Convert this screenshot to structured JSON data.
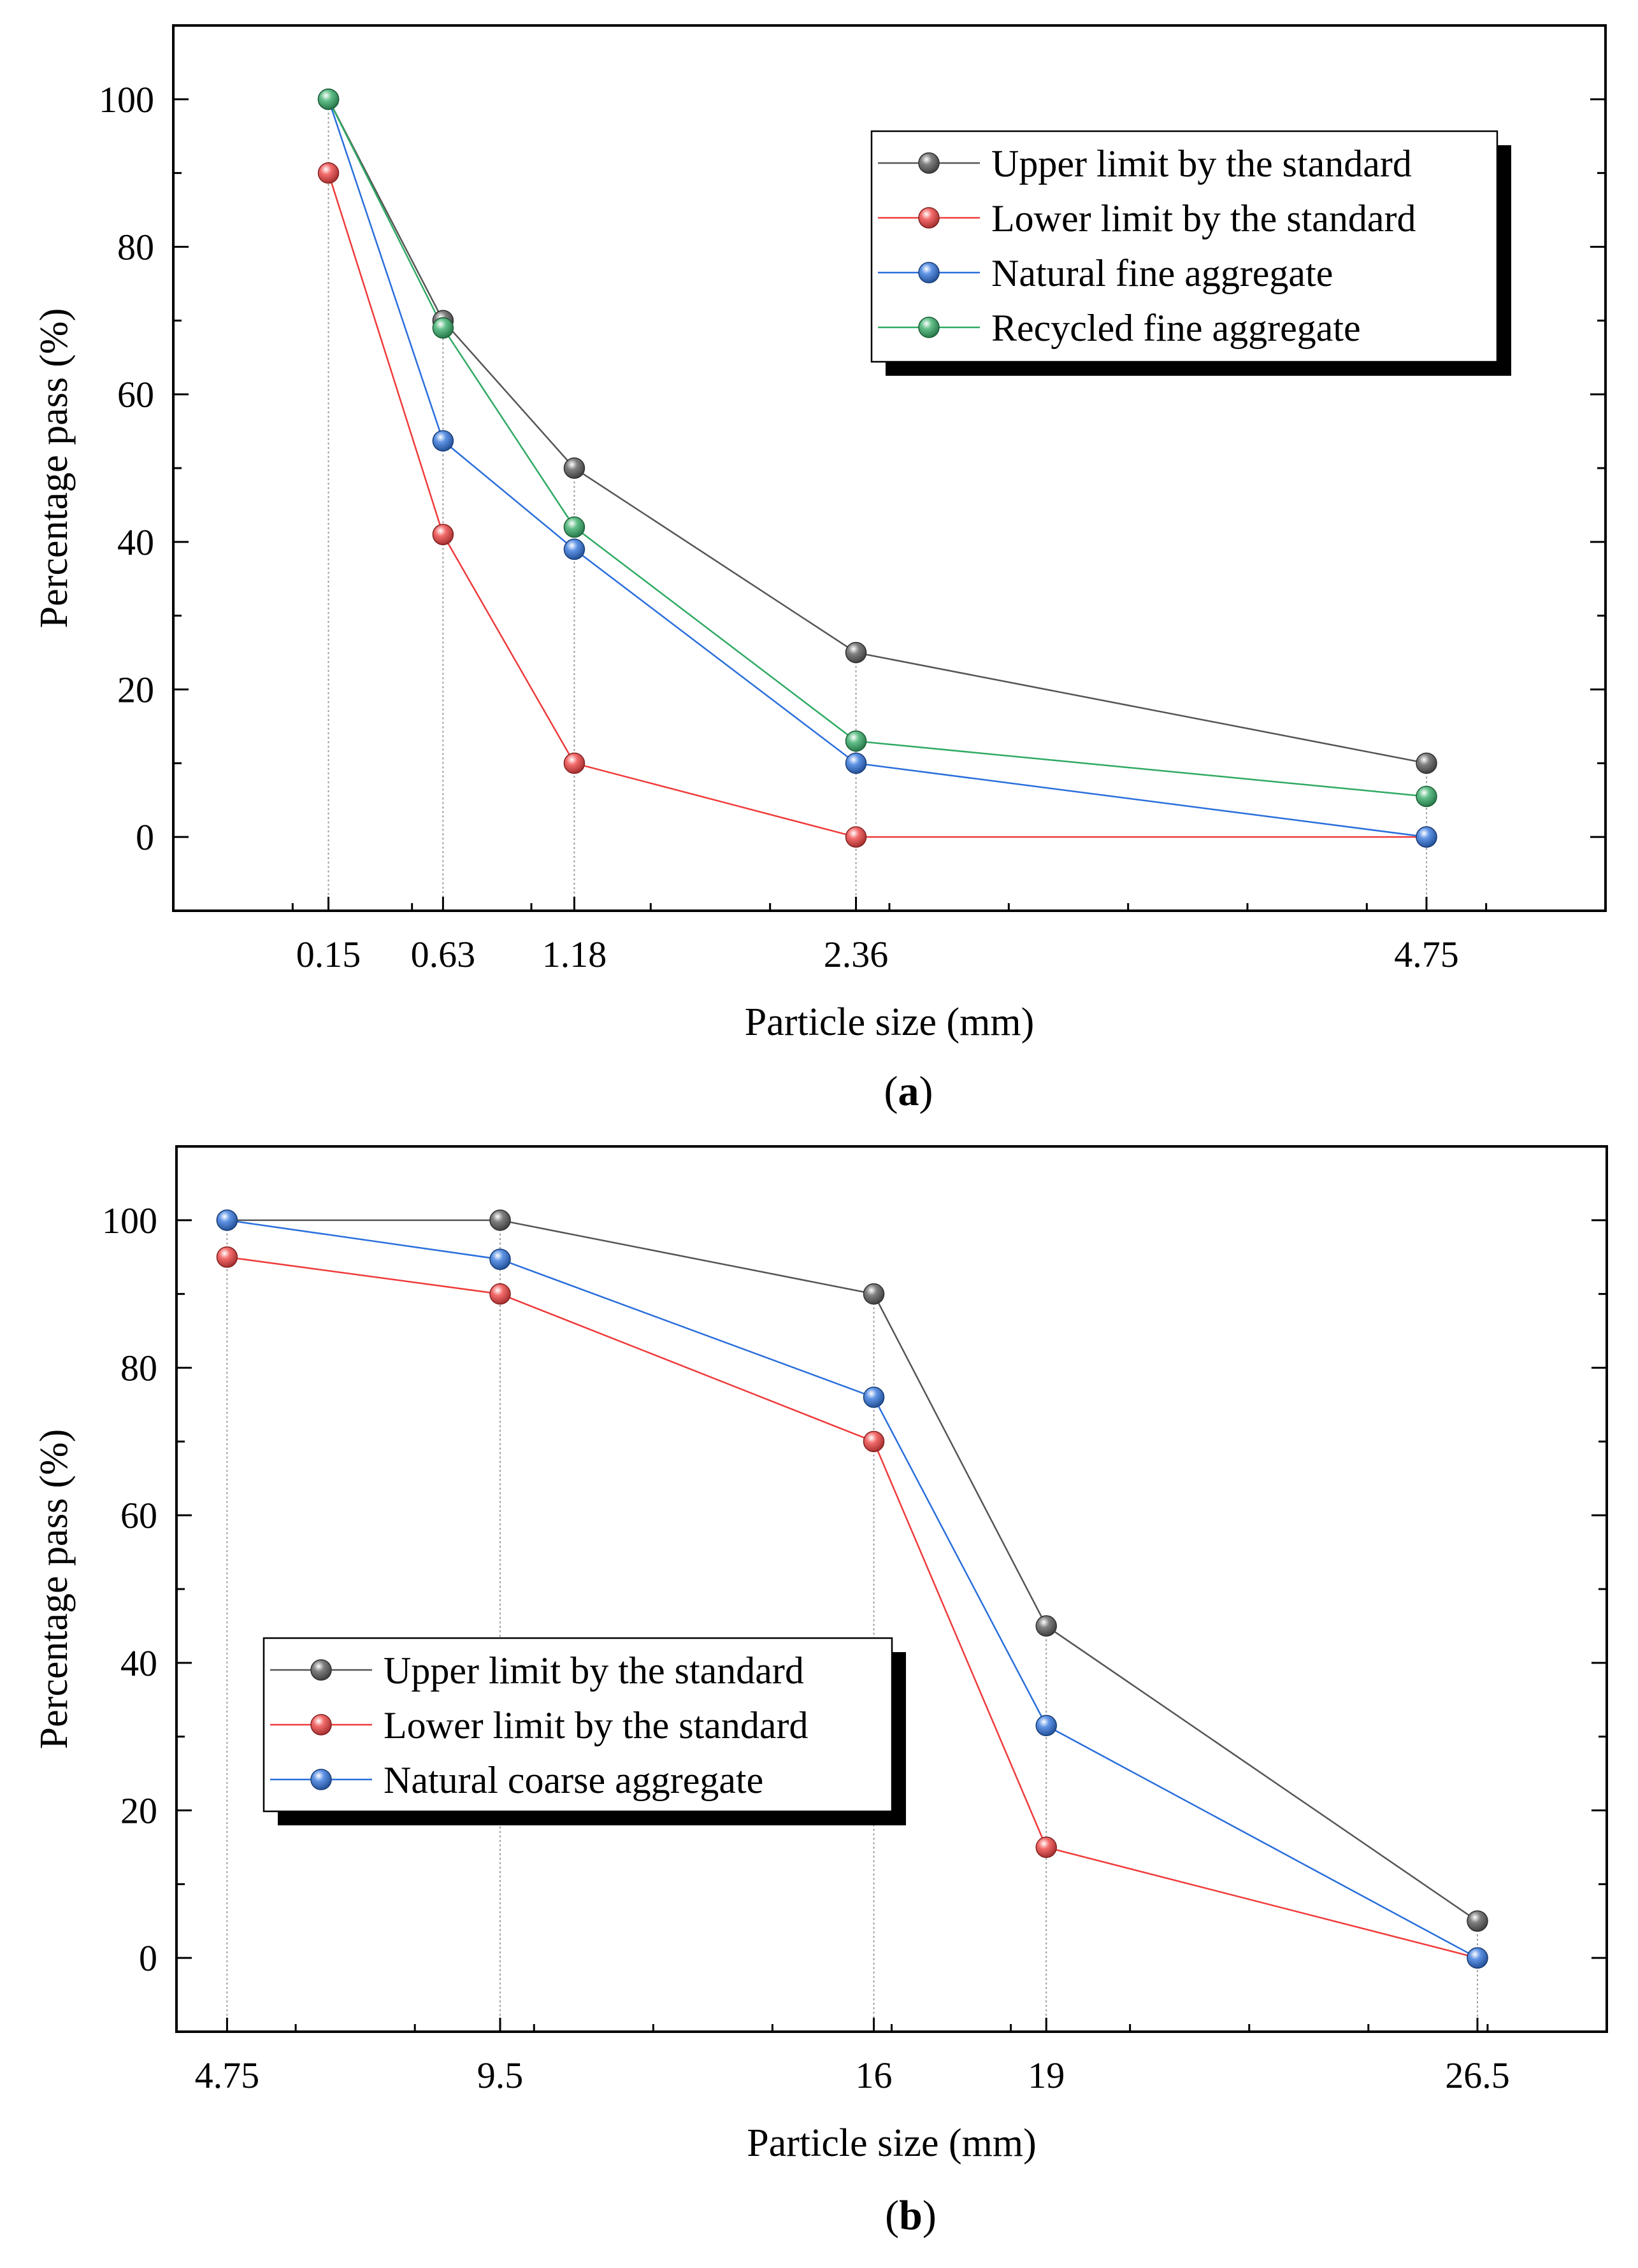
{
  "chart_data": [
    {
      "type": "line",
      "panel_label": "a",
      "xlabel": "Particle size (mm)",
      "ylabel": "Percentage pass (%)",
      "x": [
        0.15,
        0.63,
        1.18,
        2.36,
        4.75
      ],
      "x_tick_labels": [
        "0.15",
        "0.63",
        "1.18",
        "2.36",
        "4.75"
      ],
      "xlim": [
        -0.5,
        5.5
      ],
      "ylim": [
        -10,
        110
      ],
      "y_ticks": [
        0,
        20,
        40,
        60,
        80,
        100
      ],
      "grid": false,
      "legend_position": "top-right",
      "series": [
        {
          "name": "Upper limit by the standard",
          "color": "#555555",
          "values": [
            100,
            70,
            50,
            25,
            10
          ]
        },
        {
          "name": "Lower limit by the standard",
          "color": "#ef3b3b",
          "values": [
            90,
            41,
            10,
            0,
            0
          ]
        },
        {
          "name": "Natural fine aggregate",
          "color": "#2a6fdb",
          "values": [
            100,
            53.7,
            39,
            10,
            0
          ]
        },
        {
          "name": "Recycled fine aggregate",
          "color": "#2faa63",
          "values": [
            100,
            69,
            42,
            13,
            5.5
          ]
        }
      ]
    },
    {
      "type": "line",
      "panel_label": "b",
      "xlabel": "Particle size (mm)",
      "ylabel": "Percentage pass (%)",
      "x": [
        4.75,
        9.5,
        16,
        19,
        26.5
      ],
      "x_tick_labels": [
        "4.75",
        "9.5",
        "16",
        "19",
        "26.5"
      ],
      "xlim": [
        3.87,
        28.75
      ],
      "ylim": [
        -10,
        110
      ],
      "y_ticks": [
        0,
        20,
        40,
        60,
        80,
        100
      ],
      "grid": false,
      "legend_position": "bottom-left",
      "series": [
        {
          "name": "Upper limit by the standard",
          "color": "#555555",
          "values": [
            100,
            100,
            90,
            45,
            5
          ]
        },
        {
          "name": "Lower limit by the standard",
          "color": "#ef3b3b",
          "values": [
            95,
            90,
            70,
            15,
            0
          ]
        },
        {
          "name": "Natural coarse aggregate",
          "color": "#2a6fdb",
          "values": [
            100,
            94.7,
            76,
            31.5,
            0
          ]
        }
      ]
    }
  ]
}
